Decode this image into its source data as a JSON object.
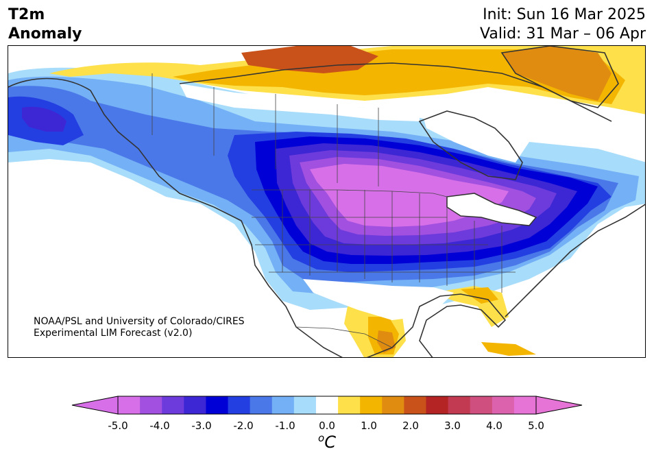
{
  "title": {
    "variable_line1": "T2m",
    "variable_line2": "Anomaly",
    "init": "Init: Sun 16 Mar 2025",
    "valid": "Valid: 31 Mar – 06 Apr"
  },
  "credit": {
    "line1": "NOAA/PSL and University of Colorado/CIRES",
    "line2": "Experimental LIM Forecast (v2.0)"
  },
  "colorbar": {
    "units_base": "C",
    "units_sup": "o",
    "tick_labels": [
      "-5.0",
      "-4.0",
      "-3.0",
      "-2.0",
      "-1.0",
      "0.0",
      "1.0",
      "2.0",
      "3.0",
      "4.0",
      "5.0"
    ],
    "levels": [
      -5.0,
      -4.5,
      -4.0,
      -3.5,
      -3.0,
      -2.5,
      -2.0,
      -1.5,
      -1.0,
      -0.5,
      0.5,
      1.0,
      1.5,
      2.0,
      2.5,
      3.0,
      3.5,
      4.0,
      4.5,
      5.0
    ],
    "colors": [
      "#d770e8",
      "#a250e0",
      "#6d3bdc",
      "#3d26d4",
      "#0000d6",
      "#233fe2",
      "#4b78e8",
      "#74b0f5",
      "#a8dcfb",
      "#ffffff",
      "#fde04a",
      "#f3b500",
      "#e08c10",
      "#c9521a",
      "#b42424",
      "#c23a52",
      "#cf4f7e",
      "#dc62ae",
      "#e574d6"
    ],
    "under_color": "#d770e8",
    "over_color": "#e574d6"
  },
  "map": {
    "region": "North America",
    "ocean_color": "#ffffff",
    "coastline_color": "#333333",
    "anomaly_regions": [
      {
        "name": "Western Alaska",
        "anomaly_c": -3.0
      },
      {
        "name": "Northern Plains / Upper Midwest",
        "anomaly_c": -5.0
      },
      {
        "name": "Hudson Bay region",
        "anomaly_c": -4.0
      },
      {
        "name": "Canadian Arctic Archipelago",
        "anomaly_c": 1.5
      },
      {
        "name": "Greenland",
        "anomaly_c": 2.0
      },
      {
        "name": "Northern Mexico",
        "anomaly_c": 1.5
      },
      {
        "name": "Florida",
        "anomaly_c": 1.0
      }
    ]
  }
}
